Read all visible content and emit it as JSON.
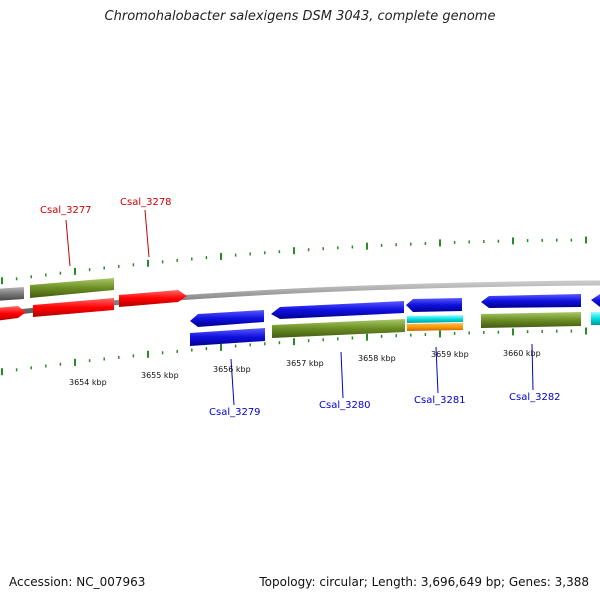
{
  "title": "Chromohalobacter salexigens DSM 3043, complete genome",
  "footer": {
    "accession": "Accession: NC_007963",
    "summary": "Topology: circular; Length: 3,696,649 bp; Genes: 3,388"
  },
  "colors": {
    "backbone": "#8a8a8a",
    "tick": "#2a8a2a",
    "label_top": "#cc0000",
    "label_bottom": "#0000cc",
    "red": "#ff0000",
    "blue": "#1010e0",
    "olive": "#6b8e23",
    "gray": "#777777",
    "cyan": "#00e0e0",
    "orange": "#ff9900"
  },
  "ticks": [
    {
      "label": "3654 kbp"
    },
    {
      "label": "3655 kbp"
    },
    {
      "label": "3656 kbp"
    },
    {
      "label": "3657 kbp"
    },
    {
      "label": "3658 kbp"
    },
    {
      "label": "3659 kbp"
    },
    {
      "label": "3660 kbp"
    }
  ],
  "genes_top": [
    {
      "label": "Csal_3277"
    },
    {
      "label": "Csal_3278"
    }
  ],
  "genes_bottom": [
    {
      "label": "Csal_3279"
    },
    {
      "label": "Csal_3280"
    },
    {
      "label": "Csal_3281"
    },
    {
      "label": "Csal_3282"
    }
  ]
}
